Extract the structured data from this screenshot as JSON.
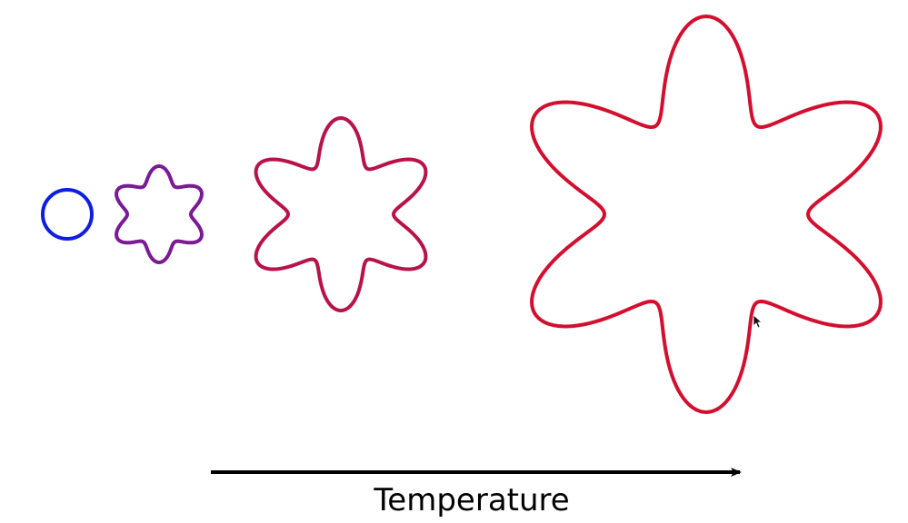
{
  "axis": {
    "label": "Temperature",
    "color": "#000000"
  },
  "shapes": [
    {
      "name": "shape-circle",
      "color": "#0f1fe0",
      "lobes": 0
    },
    {
      "name": "shape-star-small",
      "color": "#7a1a95",
      "lobes": 6
    },
    {
      "name": "shape-star-medium",
      "color": "#b8124a",
      "lobes": 6
    },
    {
      "name": "shape-star-large",
      "color": "#d30f2f",
      "lobes": 6
    }
  ]
}
